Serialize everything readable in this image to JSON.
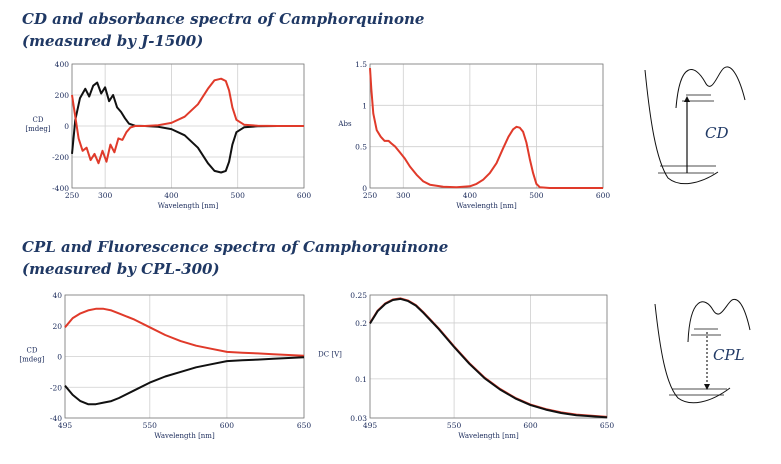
{
  "headings": {
    "cd_abs": "CD and absorbance spectra of Camphorquinone\n(measured by J-1500)",
    "cpl_fl": "CPL and Fluorescence spectra of Camphorquinone\n(measured by CPL-300)"
  },
  "colors": {
    "red_series": "#e03a2a",
    "black_series": "#111111",
    "text": "#1f3864"
  },
  "chart_data": [
    {
      "type": "line",
      "id": "cd",
      "xlabel": "Wavelength [nm]",
      "ylabel": [
        "CD",
        "[mdeg]"
      ],
      "xlim": [
        250,
        600
      ],
      "ylim": [
        -400,
        400
      ],
      "xticks": [
        250,
        300,
        400,
        500,
        600
      ],
      "yticks": [
        -400,
        -200,
        0,
        200,
        400
      ],
      "grid": true,
      "series": [
        {
          "color": "black",
          "points": [
            [
              250,
              -180
            ],
            [
              255,
              40
            ],
            [
              262,
              180
            ],
            [
              270,
              240
            ],
            [
              276,
              190
            ],
            [
              282,
              260
            ],
            [
              288,
              280
            ],
            [
              294,
              210
            ],
            [
              300,
              250
            ],
            [
              306,
              160
            ],
            [
              312,
              200
            ],
            [
              318,
              120
            ],
            [
              324,
              90
            ],
            [
              330,
              50
            ],
            [
              336,
              15
            ],
            [
              345,
              2
            ],
            [
              360,
              0
            ],
            [
              380,
              -5
            ],
            [
              400,
              -20
            ],
            [
              420,
              -60
            ],
            [
              440,
              -140
            ],
            [
              455,
              -240
            ],
            [
              465,
              -290
            ],
            [
              475,
              -300
            ],
            [
              482,
              -290
            ],
            [
              487,
              -230
            ],
            [
              492,
              -120
            ],
            [
              498,
              -40
            ],
            [
              510,
              -8
            ],
            [
              530,
              -2
            ],
            [
              560,
              0
            ],
            [
              600,
              0
            ]
          ]
        },
        {
          "color": "red",
          "points": [
            [
              250,
              200
            ],
            [
              255,
              60
            ],
            [
              260,
              -80
            ],
            [
              266,
              -160
            ],
            [
              272,
              -140
            ],
            [
              278,
              -220
            ],
            [
              284,
              -180
            ],
            [
              290,
              -240
            ],
            [
              296,
              -160
            ],
            [
              302,
              -230
            ],
            [
              308,
              -120
            ],
            [
              314,
              -170
            ],
            [
              320,
              -80
            ],
            [
              326,
              -90
            ],
            [
              332,
              -40
            ],
            [
              338,
              -10
            ],
            [
              345,
              0
            ],
            [
              360,
              0
            ],
            [
              380,
              5
            ],
            [
              400,
              20
            ],
            [
              420,
              60
            ],
            [
              440,
              140
            ],
            [
              455,
              240
            ],
            [
              465,
              295
            ],
            [
              475,
              305
            ],
            [
              482,
              290
            ],
            [
              487,
              230
            ],
            [
              492,
              120
            ],
            [
              498,
              40
            ],
            [
              510,
              8
            ],
            [
              530,
              2
            ],
            [
              560,
              0
            ],
            [
              600,
              0
            ]
          ]
        }
      ]
    },
    {
      "type": "line",
      "id": "abs",
      "xlabel": "Wavelength [nm]",
      "ylabel": [
        "Abs"
      ],
      "xlim": [
        250,
        600
      ],
      "ylim": [
        0,
        1.5
      ],
      "xticks": [
        250,
        300,
        400,
        500,
        600
      ],
      "yticks": [
        0,
        0.5,
        1,
        1.5
      ],
      "grid": true,
      "series": [
        {
          "color": "red",
          "points": [
            [
              250,
              1.45
            ],
            [
              252,
              1.2
            ],
            [
              255,
              0.9
            ],
            [
              260,
              0.7
            ],
            [
              266,
              0.62
            ],
            [
              272,
              0.57
            ],
            [
              278,
              0.57
            ],
            [
              282,
              0.54
            ],
            [
              288,
              0.5
            ],
            [
              295,
              0.43
            ],
            [
              302,
              0.36
            ],
            [
              310,
              0.26
            ],
            [
              320,
              0.16
            ],
            [
              330,
              0.08
            ],
            [
              340,
              0.04
            ],
            [
              360,
              0.015
            ],
            [
              380,
              0.01
            ],
            [
              400,
              0.02
            ],
            [
              410,
              0.05
            ],
            [
              420,
              0.1
            ],
            [
              430,
              0.18
            ],
            [
              440,
              0.3
            ],
            [
              450,
              0.48
            ],
            [
              458,
              0.62
            ],
            [
              465,
              0.71
            ],
            [
              470,
              0.74
            ],
            [
              475,
              0.73
            ],
            [
              480,
              0.68
            ],
            [
              485,
              0.55
            ],
            [
              490,
              0.35
            ],
            [
              495,
              0.18
            ],
            [
              500,
              0.05
            ],
            [
              505,
              0.01
            ],
            [
              520,
              0
            ],
            [
              560,
              0
            ],
            [
              600,
              0
            ]
          ]
        }
      ]
    },
    {
      "type": "line",
      "id": "cpl",
      "xlabel": "Wavelength [nm]",
      "ylabel": [
        "CD",
        "[mdeg]"
      ],
      "xlim": [
        495,
        650
      ],
      "ylim": [
        -40,
        40
      ],
      "xticks": [
        495,
        550,
        600,
        650
      ],
      "yticks": [
        -40,
        -20,
        0,
        20,
        40
      ],
      "grid": true,
      "series": [
        {
          "color": "red",
          "points": [
            [
              495,
              19
            ],
            [
              500,
              25
            ],
            [
              505,
              28
            ],
            [
              510,
              30
            ],
            [
              515,
              31
            ],
            [
              520,
              31
            ],
            [
              525,
              30
            ],
            [
              530,
              28
            ],
            [
              540,
              24
            ],
            [
              550,
              19
            ],
            [
              560,
              14
            ],
            [
              570,
              10
            ],
            [
              580,
              7
            ],
            [
              590,
              5
            ],
            [
              600,
              3
            ],
            [
              610,
              2.5
            ],
            [
              620,
              2
            ],
            [
              630,
              1.5
            ],
            [
              640,
              1
            ],
            [
              650,
              0.5
            ]
          ]
        },
        {
          "color": "black",
          "points": [
            [
              495,
              -19
            ],
            [
              500,
              -25
            ],
            [
              505,
              -29
            ],
            [
              510,
              -31
            ],
            [
              515,
              -31
            ],
            [
              520,
              -30
            ],
            [
              525,
              -29
            ],
            [
              530,
              -27
            ],
            [
              540,
              -22
            ],
            [
              550,
              -17
            ],
            [
              560,
              -13
            ],
            [
              570,
              -10
            ],
            [
              580,
              -7
            ],
            [
              590,
              -5
            ],
            [
              600,
              -3
            ],
            [
              610,
              -2.5
            ],
            [
              620,
              -2
            ],
            [
              630,
              -1.5
            ],
            [
              640,
              -1
            ],
            [
              650,
              -0.5
            ]
          ]
        }
      ]
    },
    {
      "type": "line",
      "id": "fl",
      "xlabel": "Wavelength [nm]",
      "ylabel": [
        "DC [V]"
      ],
      "xlim": [
        495,
        650
      ],
      "ylim": [
        0.03,
        0.25
      ],
      "xticks": [
        495,
        550,
        600,
        650
      ],
      "yticks": [
        0.03,
        0.1,
        0.2,
        0.25
      ],
      "ytick_labels": [
        "0.03",
        "0.1",
        "0.2",
        "0.25"
      ],
      "grid": true,
      "series": [
        {
          "color": "red",
          "points": [
            [
              495,
              0.2
            ],
            [
              500,
              0.222
            ],
            [
              505,
              0.235
            ],
            [
              510,
              0.242
            ],
            [
              515,
              0.244
            ],
            [
              520,
              0.24
            ],
            [
              525,
              0.232
            ],
            [
              530,
              0.219
            ],
            [
              540,
              0.19
            ],
            [
              550,
              0.158
            ],
            [
              560,
              0.128
            ],
            [
              570,
              0.102
            ],
            [
              580,
              0.082
            ],
            [
              590,
              0.066
            ],
            [
              600,
              0.054
            ],
            [
              610,
              0.046
            ],
            [
              620,
              0.04
            ],
            [
              630,
              0.036
            ],
            [
              640,
              0.034
            ],
            [
              650,
              0.032
            ]
          ]
        },
        {
          "color": "black",
          "points": [
            [
              495,
              0.199
            ],
            [
              500,
              0.221
            ],
            [
              505,
              0.234
            ],
            [
              510,
              0.241
            ],
            [
              515,
              0.243
            ],
            [
              520,
              0.239
            ],
            [
              525,
              0.231
            ],
            [
              530,
              0.218
            ],
            [
              540,
              0.189
            ],
            [
              550,
              0.157
            ],
            [
              560,
              0.127
            ],
            [
              570,
              0.101
            ],
            [
              580,
              0.081
            ],
            [
              590,
              0.065
            ],
            [
              600,
              0.053
            ],
            [
              610,
              0.045
            ],
            [
              620,
              0.039
            ],
            [
              630,
              0.035
            ],
            [
              640,
              0.033
            ],
            [
              650,
              0.031
            ]
          ]
        }
      ]
    }
  ],
  "diagrams": {
    "cd": {
      "label": "CD"
    },
    "cpl": {
      "label": "CPL"
    }
  }
}
